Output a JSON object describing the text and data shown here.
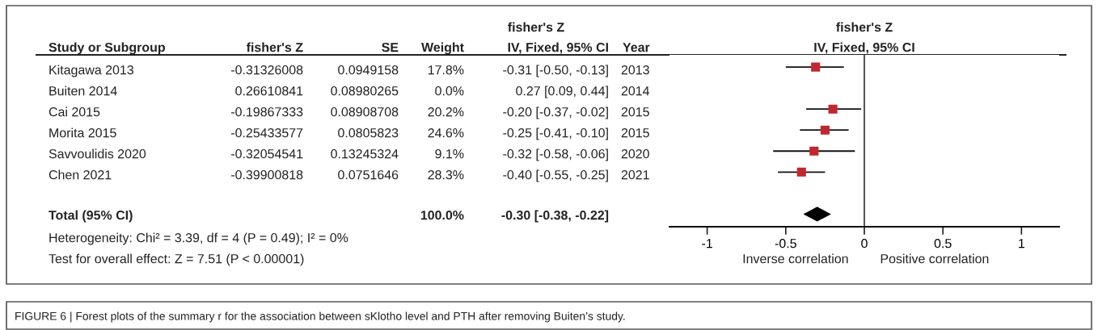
{
  "chart_data": [
    {
      "type": "other",
      "annotations": [
        "fisher's Z",
        "Study or Subgroup",
        "fisher's Z",
        "SE",
        "Weight",
        "IV, Fixed, 95% CI",
        "Year",
        "Kitagawa 2013",
        "-0.31326008",
        "0.0949158",
        "17.8%",
        "-0.31 [-0.50, -0.13]",
        "2013",
        "Buiten 2014",
        "0.26610841",
        "0.08980265",
        "0.0%",
        "0.27 [0.09, 0.44]",
        "2014",
        "Cai 2015",
        "-0.19867333",
        "0.08908708",
        "20.2%",
        "-0.20 [-0.37, -0.02]",
        "2015",
        "Morita 2015",
        "-0.25433577",
        "0.0805823",
        "24.6%",
        "-0.25 [-0.41, -0.10]",
        "2015",
        "Savvoulidis 2020",
        "-0.32054541",
        "0.13245324",
        "9.1%",
        "-0.32 [-0.58, -0.06]",
        "2020",
        "Chen 2021",
        "-0.39900818",
        "0.0751646",
        "28.3%",
        "-0.40 [-0.55, -0.25]",
        "2021",
        "Total (95% CI)",
        "100.0%",
        "-0.30 [-0.38, -0.22]",
        "Heterogeneity: Chi² = 3.39, df = 4 (P = 0.49); I² = 0%",
        "Test for overall effect: Z = 7.51 (P < 0.00001)",
        "FIGURE 6 | Forest plots of the summary r for the association between sKlotho level and PTH after removing Buiten’s study."
      ]
    },
    {
      "type": "scatter",
      "orientation": "horizontal",
      "title": "fisher's Z",
      "subtitle": "IV, Fixed, 95% CI",
      "categories": [
        null,
        null,
        null,
        null,
        null,
        null,
        null,
        null
      ],
      "series": [
        {
          "color": "#c0282d",
          "marker": "square",
          "values": [
            -0.31,
            null,
            -0.2,
            -0.25,
            -0.32,
            -0.4,
            null,
            null
          ],
          "errors": [
            [
              -0.5,
              -0.13
            ],
            null,
            [
              -0.37,
              -0.02
            ],
            [
              -0.41,
              -0.1
            ],
            [
              -0.58,
              -0.06
            ],
            [
              -0.55,
              -0.25
            ],
            null,
            null
          ]
        },
        {
          "color": "#000000",
          "marker": "diamond",
          "values": [
            null,
            null,
            null,
            null,
            null,
            null,
            null,
            -0.3
          ],
          "errors": [
            null,
            null,
            null,
            null,
            null,
            null,
            null,
            [
              -0.38,
              -0.22
            ]
          ]
        }
      ],
      "xlim": [
        -1.24,
        1.24
      ],
      "xticks": [
        -1,
        -0.5,
        0,
        0.5,
        1
      ],
      "ref_lines": [
        {
          "axis": "x",
          "value": 0,
          "color": "#333333"
        }
      ],
      "annotations": [
        "Inverse correlation",
        "Positive correlation"
      ],
      "grid": false,
      "legend": false,
      "tick_labels": "x"
    }
  ]
}
